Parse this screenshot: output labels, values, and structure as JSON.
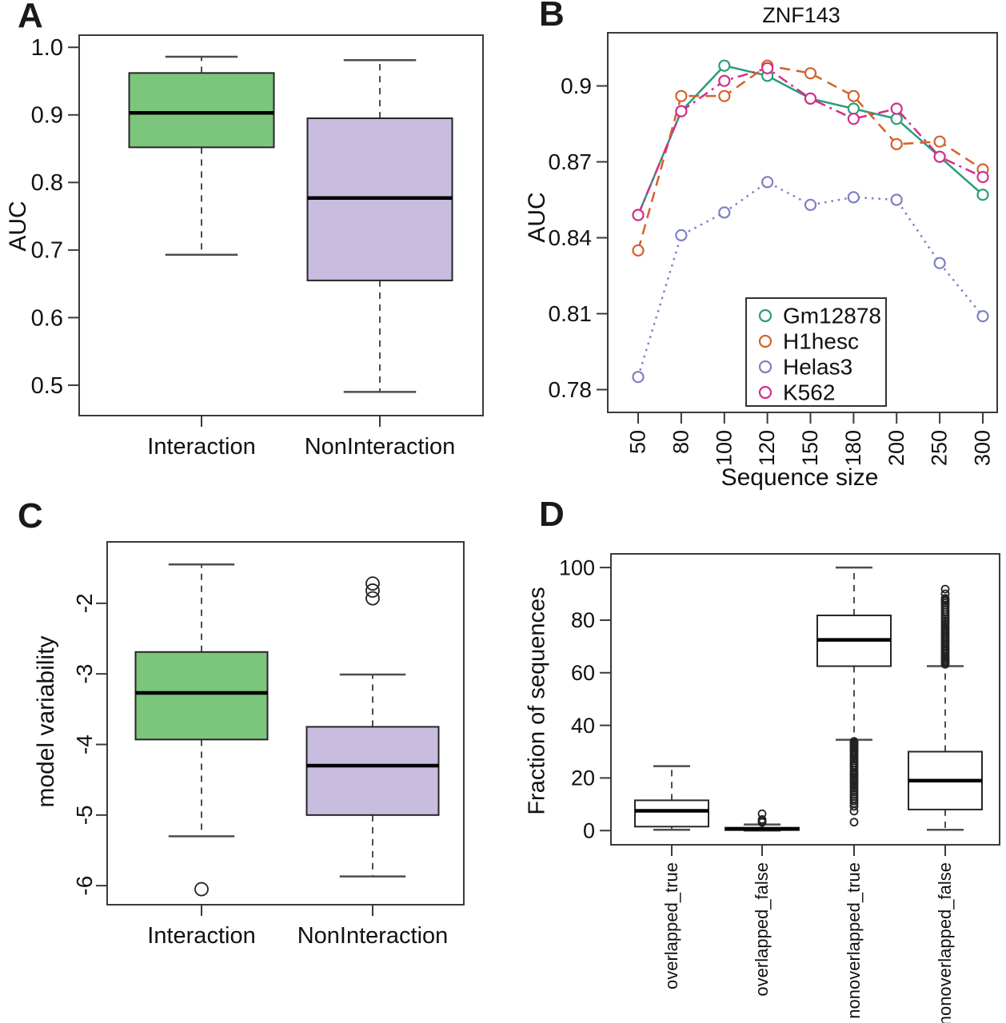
{
  "chart_data": [
    {
      "panel_label": "A",
      "type": "boxplot",
      "title": "",
      "xlabel": "",
      "ylabel": "AUC",
      "ylim": [
        0.455,
        1.018
      ],
      "grid": false,
      "yticks": [
        {
          "label": "1.0",
          "value": 1.0
        },
        {
          "label": "0.9",
          "value": 0.9
        },
        {
          "label": "0.8",
          "value": 0.8
        },
        {
          "label": "0.7",
          "value": 0.7
        },
        {
          "label": "0.6",
          "value": 0.6
        },
        {
          "label": "0.5",
          "value": 0.5
        }
      ],
      "categories": [
        "Interaction",
        "NonInteraction"
      ],
      "colors": {
        "interaction_fill": "#7cc57c",
        "noninteraction_fill": "#c8bcdf"
      },
      "boxes": [
        {
          "category": "Interaction",
          "fill": "#7cc57c",
          "whisker_low": 0.693,
          "q1": 0.852,
          "median": 0.903,
          "q3": 0.962,
          "whisker_high": 0.986,
          "outliers": []
        },
        {
          "category": "NonInteraction",
          "fill": "#c8bcdf",
          "whisker_low": 0.49,
          "q1": 0.655,
          "median": 0.777,
          "q3": 0.895,
          "whisker_high": 0.981,
          "outliers": []
        }
      ]
    },
    {
      "panel_label": "B",
      "type": "line",
      "title": "ZNF143",
      "xlabel": "Sequence size",
      "ylabel": "AUC",
      "ylim": [
        0.771,
        0.921
      ],
      "grid": false,
      "yticks": [
        {
          "label": "0.9",
          "value": 0.9
        },
        {
          "label": "0.87",
          "value": 0.87
        },
        {
          "label": "0.84",
          "value": 0.84
        },
        {
          "label": "0.81",
          "value": 0.81
        },
        {
          "label": "0.78",
          "value": 0.78
        }
      ],
      "x_categories": [
        "50",
        "80",
        "100",
        "120",
        "150",
        "180",
        "200",
        "250",
        "300"
      ],
      "series": [
        {
          "name": "Gm12878",
          "color": "#2a9d78",
          "line_style": "solid",
          "values": [
            0.849,
            0.89,
            0.908,
            0.904,
            0.895,
            0.891,
            0.887,
            0.872,
            0.857
          ]
        },
        {
          "name": "H1hesc",
          "color": "#d2622a",
          "line_style": "dashed",
          "values": [
            0.835,
            0.896,
            0.896,
            0.908,
            0.905,
            0.896,
            0.877,
            0.878,
            0.867
          ]
        },
        {
          "name": "Helas3",
          "color": "#7f7fc4",
          "line_style": "dotted",
          "values": [
            0.785,
            0.841,
            0.85,
            0.862,
            0.853,
            0.856,
            0.855,
            0.83,
            0.809
          ]
        },
        {
          "name": "K562",
          "color": "#d42e8c",
          "line_style": "dashdot",
          "values": [
            0.849,
            0.89,
            0.902,
            0.907,
            0.895,
            0.887,
            0.891,
            0.872,
            0.864
          ]
        }
      ],
      "legend": {
        "position": "bottom-center",
        "entries": [
          "Gm12878",
          "H1hesc",
          "Helas3",
          "K562"
        ]
      }
    },
    {
      "panel_label": "C",
      "type": "boxplot",
      "title": "",
      "xlabel": "",
      "ylabel": "model variability",
      "ylim": [
        -6.27,
        -1.13
      ],
      "grid": false,
      "yticks_rotated": true,
      "yticks": [
        {
          "label": "-2",
          "value": -2
        },
        {
          "label": "-3",
          "value": -3
        },
        {
          "label": "-4",
          "value": -4
        },
        {
          "label": "-5",
          "value": -5
        },
        {
          "label": "-6",
          "value": -6
        }
      ],
      "categories": [
        "Interaction",
        "NonInteraction"
      ],
      "colors": {
        "interaction_fill": "#7cc57c",
        "noninteraction_fill": "#c8bcdf"
      },
      "boxes": [
        {
          "category": "Interaction",
          "fill": "#7cc57c",
          "whisker_low": -5.3,
          "q1": -3.93,
          "median": -3.27,
          "q3": -2.69,
          "whisker_high": -1.45,
          "outliers": [
            -6.05
          ]
        },
        {
          "category": "NonInteraction",
          "fill": "#c8bcdf",
          "whisker_low": -5.87,
          "q1": -5.0,
          "median": -4.3,
          "q3": -3.75,
          "whisker_high": -3.01,
          "outliers": [
            -1.72,
            -1.82,
            -1.93
          ]
        }
      ]
    },
    {
      "panel_label": "D",
      "type": "boxplot",
      "title": "",
      "xlabel": "",
      "ylabel": "Fraction of sequences",
      "ylim": [
        -5.4,
        105.2
      ],
      "grid": false,
      "xticks_rotated": true,
      "yticks": [
        {
          "label": "100",
          "value": 100
        },
        {
          "label": "80",
          "value": 80
        },
        {
          "label": "60",
          "value": 60
        },
        {
          "label": "40",
          "value": 40
        },
        {
          "label": "20",
          "value": 20
        },
        {
          "label": "0",
          "value": 0
        }
      ],
      "categories": [
        "overlapped_true",
        "overlapped_false",
        "nonoverlapped_true",
        "nonoverlapped_false"
      ],
      "boxes": [
        {
          "category": "overlapped_true",
          "fill": "#ffffff",
          "whisker_low": 0.3,
          "q1": 1.5,
          "median": 7.5,
          "q3": 11.5,
          "whisker_high": 24.5,
          "outliers": []
        },
        {
          "category": "overlapped_false",
          "fill": "#ffffff",
          "whisker_low": 0.0,
          "q1": 0.2,
          "median": 0.6,
          "q3": 1.1,
          "whisker_high": 2.3,
          "outliers": [
            3.1,
            3.6,
            4.2,
            6.4
          ]
        },
        {
          "category": "nonoverlapped_true",
          "fill": "#ffffff",
          "whisker_low": 34.5,
          "q1": 62.5,
          "median": 72.5,
          "q3": 81.8,
          "whisker_high": 100,
          "outliers": [
            33.9,
            33.5,
            33.1,
            32.7,
            32.3,
            31.9,
            31.4,
            30.8,
            30.2,
            29.5,
            28.8,
            28.1,
            27.3,
            26.5,
            25.7,
            24.9,
            24.5,
            23.8,
            22.9,
            22.1,
            21.5,
            21.0,
            20.4,
            19.8,
            19.2,
            18.5,
            17.7,
            16.9,
            16.2,
            15.4,
            14.6,
            13.7,
            12.9,
            12.1,
            11.2,
            10.3,
            9.2,
            7.4,
            3.2
          ]
        },
        {
          "category": "nonoverlapped_false",
          "fill": "#ffffff",
          "whisker_low": 0.3,
          "q1": 8.0,
          "median": 19.0,
          "q3": 30.0,
          "whisker_high": 62.5,
          "outliers": [
            63.2,
            63.8,
            64.4,
            65.0,
            65.6,
            66.2,
            66.9,
            67.5,
            68.2,
            68.9,
            69.6,
            70.3,
            71.0,
            71.7,
            72.4,
            73.1,
            73.8,
            74.5,
            75.2,
            75.9,
            76.6,
            77.3,
            78.1,
            78.9,
            79.7,
            80.5,
            81.3,
            82.1,
            83.0,
            83.9,
            84.8,
            85.7,
            86.5,
            87.2,
            87.8,
            88.3,
            90.0,
            91.8
          ]
        }
      ]
    }
  ]
}
